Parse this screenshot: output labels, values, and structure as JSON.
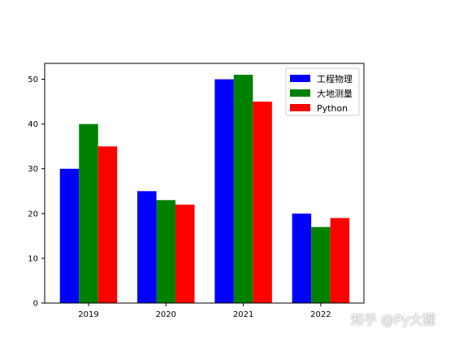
{
  "chart_data": {
    "type": "bar",
    "title": "",
    "xlabel": "",
    "ylabel": "",
    "categories": [
      "2019",
      "2020",
      "2021",
      "2022"
    ],
    "series": [
      {
        "name": "工程物理",
        "color": "#0000ff",
        "values": [
          30,
          25,
          50,
          20
        ]
      },
      {
        "name": "大地测量",
        "color": "#008000",
        "values": [
          40,
          23,
          51,
          17
        ]
      },
      {
        "name": "Python",
        "color": "#ff0000",
        "values": [
          35,
          22,
          45,
          19
        ]
      }
    ],
    "ylim": [
      0,
      53.55
    ],
    "yticks": [
      0,
      10,
      20,
      30,
      40,
      50
    ],
    "grid": false,
    "legend_position": "top-right"
  },
  "watermark": {
    "text": "知乎 @Py大猩"
  }
}
